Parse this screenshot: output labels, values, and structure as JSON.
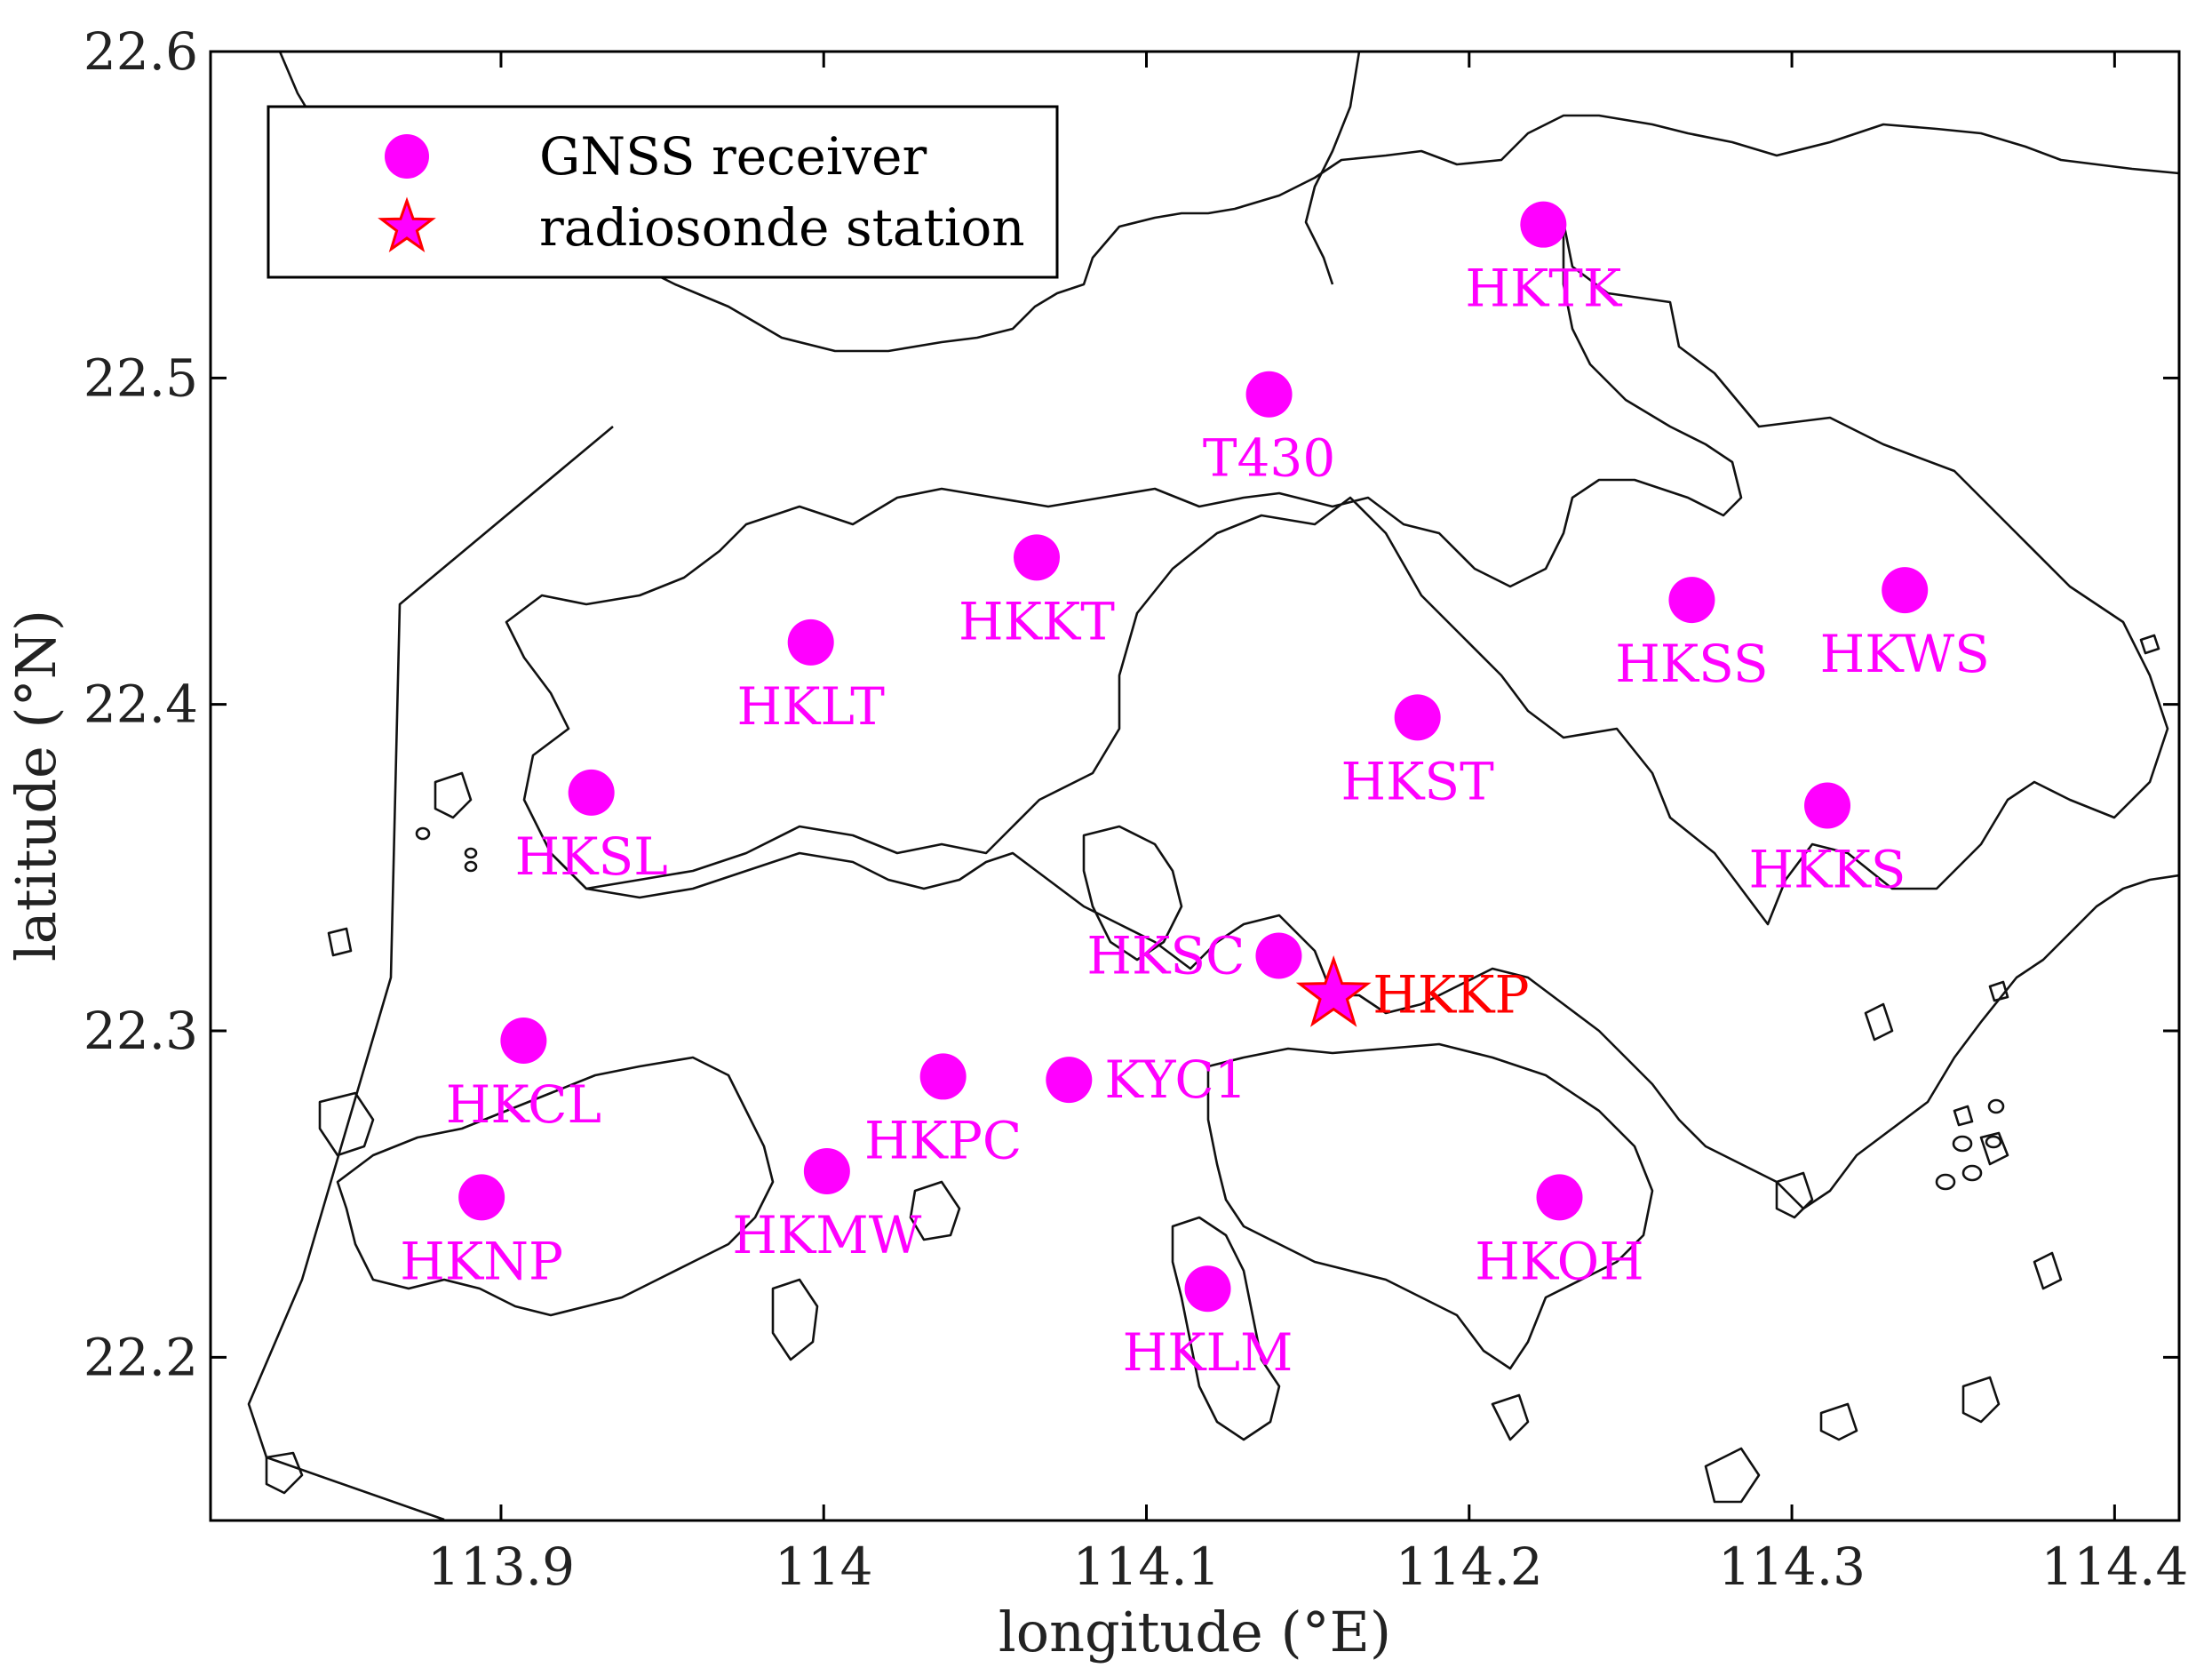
{
  "chart_data": {
    "type": "scatter",
    "xlabel": "longitude (°E)",
    "ylabel": "latitude (°N)",
    "xlim": [
      113.81,
      114.42
    ],
    "ylim": [
      22.15,
      22.6
    ],
    "x_ticks": [
      "113.9",
      "114",
      "114.1",
      "114.2",
      "114.3",
      "114.4"
    ],
    "x_tick_values": [
      113.9,
      114.0,
      114.1,
      114.2,
      114.3,
      114.4
    ],
    "y_ticks": [
      "22.2",
      "22.3",
      "22.4",
      "22.5",
      "22.6"
    ],
    "y_tick_values": [
      22.2,
      22.3,
      22.4,
      22.5,
      22.6
    ],
    "grid": false,
    "legend_position": "top-left",
    "legend": [
      {
        "label": "GNSS receiver",
        "marker": "circle",
        "color": "#ff00ff"
      },
      {
        "label": "radiosonde station",
        "marker": "star",
        "color": "#ff00ff",
        "edge_color": "#ff0000"
      }
    ],
    "series": [
      {
        "name": "GNSS receiver",
        "marker": "circle",
        "color": "#ff00ff",
        "points": [
          {
            "label": "HKTK",
            "lon": 114.223,
            "lat": 22.547
          },
          {
            "label": "T430",
            "lon": 114.138,
            "lat": 22.495
          },
          {
            "label": "HKKT",
            "lon": 114.066,
            "lat": 22.445
          },
          {
            "label": "HKLT",
            "lon": 113.996,
            "lat": 22.419
          },
          {
            "label": "HKSS",
            "lon": 114.269,
            "lat": 22.432
          },
          {
            "label": "HKWS",
            "lon": 114.335,
            "lat": 22.435
          },
          {
            "label": "HKST",
            "lon": 114.184,
            "lat": 22.396
          },
          {
            "label": "HKSL",
            "lon": 113.928,
            "lat": 22.373
          },
          {
            "label": "HKKS",
            "lon": 114.311,
            "lat": 22.369
          },
          {
            "label": "HKSC",
            "lon": 114.141,
            "lat": 22.323
          },
          {
            "label": "HKCL",
            "lon": 113.907,
            "lat": 22.297
          },
          {
            "label": "HKPC",
            "lon": 114.037,
            "lat": 22.286
          },
          {
            "label": "KYC1",
            "lon": 114.076,
            "lat": 22.285
          },
          {
            "label": "HKMW",
            "lon": 114.001,
            "lat": 22.257
          },
          {
            "label": "HKNP",
            "lon": 113.894,
            "lat": 22.249
          },
          {
            "label": "HKOH",
            "lon": 114.228,
            "lat": 22.249
          },
          {
            "label": "HKLM",
            "lon": 114.119,
            "lat": 22.221
          }
        ]
      },
      {
        "name": "radiosonde station",
        "marker": "star",
        "color": "#ff00ff",
        "edge_color": "#ff0000",
        "points": [
          {
            "label": "HKKP",
            "lon": 114.158,
            "lat": 22.311
          }
        ]
      }
    ],
    "label_colors": {
      "GNSS receiver": "#ff00ff",
      "radiosonde station": "#ff0000"
    }
  }
}
